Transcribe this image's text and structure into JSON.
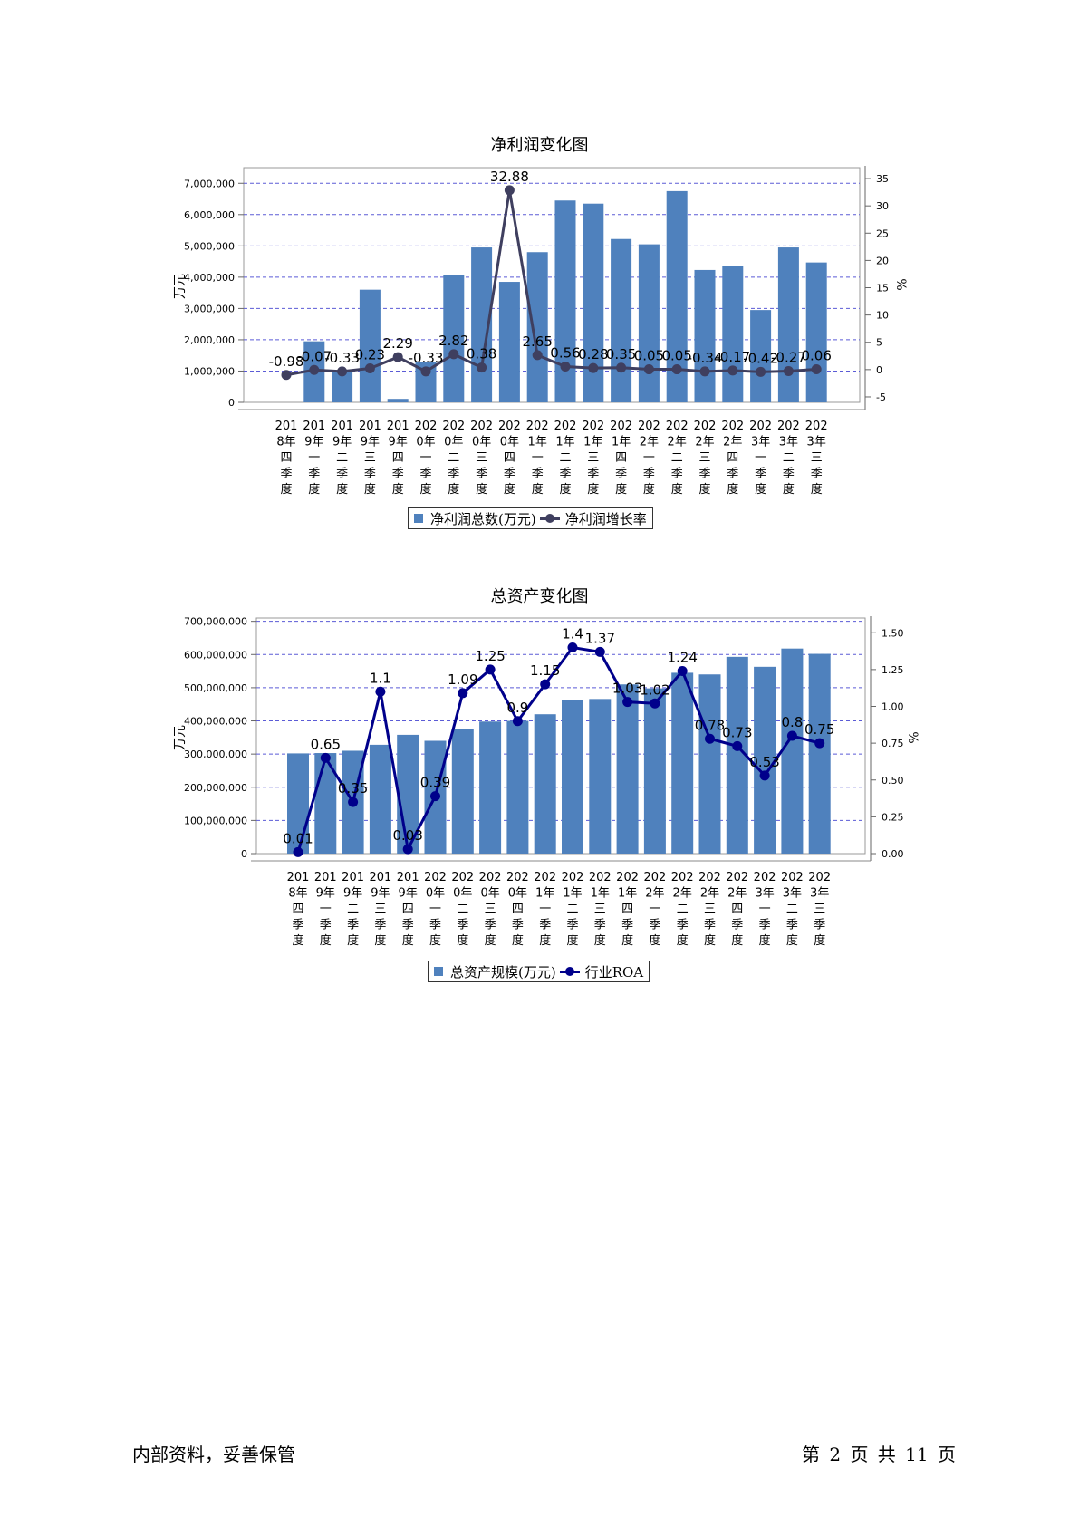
{
  "charts": {
    "profit": {
      "title": "净利润变化图",
      "left_axis_label": "万元",
      "right_axis_label": "%",
      "legend_bar": "净利润总数(万元)",
      "legend_line": "净利润增长率"
    },
    "assets": {
      "title": "总资产变化图",
      "left_axis_label": "万元",
      "right_axis_label": "%",
      "legend_bar": "总资产规模(万元)",
      "legend_line": "行业ROA"
    }
  },
  "footer": {
    "left": "内部资料，妥善保管",
    "right": "第 2 页  共 11 页"
  },
  "chart_data": [
    {
      "type": "bar",
      "title": "净利润变化图",
      "categories": [
        "2018年四季度",
        "2019年一季度",
        "2019年二季度",
        "2019年三季度",
        "2019年四季度",
        "2020年一季度",
        "2020年二季度",
        "2020年三季度",
        "2020年四季度",
        "2021年一季度",
        "2021年二季度",
        "2021年三季度",
        "2021年四季度",
        "2022年一季度",
        "2022年二季度",
        "2022年三季度",
        "2022年四季度",
        "2023年一季度",
        "2023年二季度",
        "2023年三季度"
      ],
      "category_lines": [
        [
          "201",
          "8年",
          "四",
          "季",
          "度"
        ],
        [
          "201",
          "9年",
          "一",
          "季",
          "度"
        ],
        [
          "201",
          "9年",
          "二",
          "季",
          "度"
        ],
        [
          "201",
          "9年",
          "三",
          "季",
          "度"
        ],
        [
          "201",
          "9年",
          "四",
          "季",
          "度"
        ],
        [
          "202",
          "0年",
          "一",
          "季",
          "度"
        ],
        [
          "202",
          "0年",
          "二",
          "季",
          "度"
        ],
        [
          "202",
          "0年",
          "三",
          "季",
          "度"
        ],
        [
          "202",
          "0年",
          "四",
          "季",
          "度"
        ],
        [
          "202",
          "1年",
          "一",
          "季",
          "度"
        ],
        [
          "202",
          "1年",
          "二",
          "季",
          "度"
        ],
        [
          "202",
          "1年",
          "三",
          "季",
          "度"
        ],
        [
          "202",
          "1年",
          "四",
          "季",
          "度"
        ],
        [
          "202",
          "2年",
          "一",
          "季",
          "度"
        ],
        [
          "202",
          "2年",
          "二",
          "季",
          "度"
        ],
        [
          "202",
          "2年",
          "三",
          "季",
          "度"
        ],
        [
          "202",
          "2年",
          "四",
          "季",
          "度"
        ],
        [
          "202",
          "3年",
          "一",
          "季",
          "度"
        ],
        [
          "202",
          "3年",
          "二",
          "季",
          "度"
        ],
        [
          "202",
          "3年",
          "三",
          "季",
          "度"
        ]
      ],
      "series": [
        {
          "name": "净利润总数(万元)",
          "kind": "bar",
          "axis": "left",
          "color": "#4f81bd",
          "values": [
            0,
            1950000,
            980000,
            3600000,
            110000,
            1300000,
            4070000,
            4950000,
            3850000,
            4800000,
            6450000,
            6350000,
            5220000,
            5050000,
            6750000,
            4230000,
            4350000,
            2950000,
            4950000,
            4470000
          ]
        },
        {
          "name": "净利润增长率",
          "kind": "line",
          "axis": "right",
          "color": "#3f3f5f",
          "values": [
            -0.98,
            -0.07,
            -0.33,
            0.23,
            2.29,
            -0.33,
            2.82,
            0.38,
            32.88,
            2.65,
            0.56,
            0.28,
            0.35,
            0.05,
            0.05,
            -0.34,
            -0.17,
            -0.42,
            -0.27,
            0.06
          ],
          "labels": [
            "-0.98",
            "-0.07",
            "-0.33",
            "0.23",
            "2.29",
            "-0.33",
            "2.82",
            "0.38",
            "32.88",
            "2.65",
            "0.56",
            "0.28",
            "0.35",
            "0.05",
            "0.05",
            "-0.34",
            "-0.17",
            "-0.42",
            "-0.27",
            "0.06"
          ]
        }
      ],
      "left_ylim": [
        0,
        7500000
      ],
      "left_ticks": [
        "0",
        "1,000,000",
        "2,000,000",
        "3,000,000",
        "4,000,000",
        "5,000,000",
        "6,000,000",
        "7,000,000"
      ],
      "left_tick_values": [
        0,
        1000000,
        2000000,
        3000000,
        4000000,
        5000000,
        6000000,
        7000000
      ],
      "right_ylim": [
        -6,
        37
      ],
      "right_ticks": [
        "-5",
        "0",
        "5",
        "10",
        "15",
        "20",
        "25",
        "30",
        "35"
      ],
      "right_tick_values": [
        -5,
        0,
        5,
        10,
        15,
        20,
        25,
        30,
        35
      ],
      "ylabel_left": "万元",
      "ylabel_right": "%",
      "grid": true,
      "legend": "bottom"
    },
    {
      "type": "bar",
      "title": "总资产变化图",
      "categories": [
        "2018年四季度",
        "2019年一季度",
        "2019年二季度",
        "2019年三季度",
        "2019年四季度",
        "2020年一季度",
        "2020年二季度",
        "2020年三季度",
        "2020年四季度",
        "2021年一季度",
        "2021年二季度",
        "2021年三季度",
        "2021年四季度",
        "2022年一季度",
        "2022年二季度",
        "2022年三季度",
        "2022年四季度",
        "2023年一季度",
        "2023年二季度",
        "2023年三季度"
      ],
      "category_lines": [
        [
          "201",
          "8年",
          "四",
          "季",
          "度"
        ],
        [
          "201",
          "9年",
          "一",
          "季",
          "度"
        ],
        [
          "201",
          "9年",
          "二",
          "季",
          "度"
        ],
        [
          "201",
          "9年",
          "三",
          "季",
          "度"
        ],
        [
          "201",
          "9年",
          "四",
          "季",
          "度"
        ],
        [
          "202",
          "0年",
          "一",
          "季",
          "度"
        ],
        [
          "202",
          "0年",
          "二",
          "季",
          "度"
        ],
        [
          "202",
          "0年",
          "三",
          "季",
          "度"
        ],
        [
          "202",
          "0年",
          "四",
          "季",
          "度"
        ],
        [
          "202",
          "1年",
          "一",
          "季",
          "度"
        ],
        [
          "202",
          "1年",
          "二",
          "季",
          "度"
        ],
        [
          "202",
          "1年",
          "三",
          "季",
          "度"
        ],
        [
          "202",
          "1年",
          "四",
          "季",
          "度"
        ],
        [
          "202",
          "2年",
          "一",
          "季",
          "度"
        ],
        [
          "202",
          "2年",
          "二",
          "季",
          "度"
        ],
        [
          "202",
          "2年",
          "三",
          "季",
          "度"
        ],
        [
          "202",
          "2年",
          "四",
          "季",
          "度"
        ],
        [
          "202",
          "3年",
          "一",
          "季",
          "度"
        ],
        [
          "202",
          "3年",
          "二",
          "季",
          "度"
        ],
        [
          "202",
          "3年",
          "三",
          "季",
          "度"
        ]
      ],
      "series": [
        {
          "name": "总资产规模(万元)",
          "kind": "bar",
          "axis": "left",
          "color": "#4f81bd",
          "values": [
            302000000,
            303000000,
            310000000,
            328000000,
            358000000,
            340000000,
            375000000,
            398000000,
            400000000,
            420000000,
            462000000,
            466000000,
            510000000,
            498000000,
            545000000,
            540000000,
            593000000,
            563000000,
            618000000,
            602000000
          ]
        },
        {
          "name": "行业ROA",
          "kind": "line",
          "axis": "right",
          "color": "#00008b",
          "values": [
            0.01,
            0.65,
            0.35,
            1.1,
            0.03,
            0.39,
            1.09,
            1.25,
            0.9,
            1.15,
            1.4,
            1.37,
            1.03,
            1.02,
            1.24,
            0.78,
            0.73,
            0.53,
            0.8,
            0.75
          ],
          "labels": [
            "0.01",
            "0.65",
            "0.35",
            "1.1",
            "0.03",
            "0.39",
            "1.09",
            "1.25",
            "0.9",
            "1.15",
            "1.4",
            "1.37",
            "1.03",
            "1.02",
            "1.24",
            "0.78",
            "0.73",
            "0.53",
            "0.8",
            "0.75"
          ]
        }
      ],
      "left_ylim": [
        0,
        710000000
      ],
      "left_ticks": [
        "0",
        "100,000,000",
        "200,000,000",
        "300,000,000",
        "400,000,000",
        "500,000,000",
        "600,000,000",
        "700,000,000"
      ],
      "left_tick_values": [
        0,
        100000000,
        200000000,
        300000000,
        400000000,
        500000000,
        600000000,
        700000000
      ],
      "right_ylim": [
        0,
        1.6
      ],
      "right_ticks": [
        "0.00",
        "0.25",
        "0.50",
        "0.75",
        "1.00",
        "1.25",
        "1.50"
      ],
      "right_tick_values": [
        0,
        0.25,
        0.5,
        0.75,
        1.0,
        1.25,
        1.5
      ],
      "ylabel_left": "万元",
      "ylabel_right": "%",
      "grid": true,
      "legend": "bottom"
    }
  ]
}
